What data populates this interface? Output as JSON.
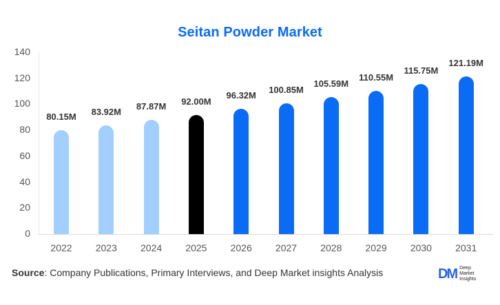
{
  "chart_data": {
    "type": "bar",
    "title": "Seitan Powder Market",
    "xlabel": "",
    "ylabel": "",
    "ylim": [
      0,
      140
    ],
    "yticks": [
      0,
      20,
      40,
      60,
      80,
      100,
      120,
      140
    ],
    "grid": false,
    "categories": [
      "2022",
      "2023",
      "2024",
      "2025",
      "2026",
      "2027",
      "2028",
      "2029",
      "2030",
      "2031"
    ],
    "values": [
      80.15,
      83.92,
      87.87,
      92.0,
      96.32,
      100.85,
      105.59,
      110.55,
      115.75,
      121.19
    ],
    "value_labels": [
      "80.15M",
      "83.92M",
      "87.87M",
      "92.00M",
      "96.32M",
      "100.85M",
      "105.59M",
      "110.55M",
      "115.75M",
      "121.19M"
    ],
    "bar_colors": [
      "#a3cfff",
      "#a3cfff",
      "#a3cfff",
      "#000000",
      "#0a6cf5",
      "#0a6cf5",
      "#0a6cf5",
      "#0a6cf5",
      "#0a6cf5",
      "#0a6cf5"
    ],
    "unit": "M"
  },
  "footer": {
    "source_label": "Source",
    "source_text": ": Company Publications, Primary Interviews, and Deep Market insights Analysis",
    "logo_mark": "DM",
    "logo_line1": "Deep",
    "logo_line2": "Market",
    "logo_line3": "Insights"
  }
}
